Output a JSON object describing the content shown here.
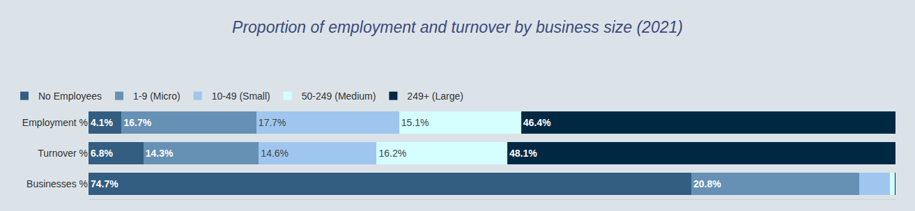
{
  "chart_data": {
    "type": "bar",
    "title": "Proportion of employment and turnover by business size (2021)",
    "orientation": "horizontal",
    "stacked": true,
    "data_labels": true,
    "tick_labels": "y",
    "grid": false,
    "legend": "top-left",
    "categories": [
      "Employment %",
      "Turnover %",
      "Businesses %"
    ],
    "xlim": [
      0,
      100
    ],
    "series": [
      {
        "name": "No Employees",
        "color": "#335e82",
        "values": [
          4.1,
          6.8,
          74.7
        ],
        "value_labels": [
          "4.1%",
          "6.8%",
          "74.7%"
        ]
      },
      {
        "name": "1-9 (Micro)",
        "color": "#6790b5",
        "values": [
          16.7,
          14.3,
          20.8
        ],
        "value_labels": [
          "16.7%",
          "14.3%",
          "20.8%"
        ]
      },
      {
        "name": "10-49 (Small)",
        "color": "#9fc6ee",
        "values": [
          17.7,
          14.6,
          3.8
        ],
        "value_labels": [
          "17.7%",
          "14.6%",
          null
        ]
      },
      {
        "name": "50-249 (Medium)",
        "color": "#d4feff",
        "values": [
          15.1,
          16.2,
          0.6
        ],
        "value_labels": [
          "15.1%",
          "16.2%",
          null
        ]
      },
      {
        "name": "249+ (Large)",
        "color": "#012843",
        "values": [
          46.4,
          48.1,
          0.1
        ],
        "value_labels": [
          "46.4%",
          "48.1%",
          null
        ]
      }
    ]
  }
}
